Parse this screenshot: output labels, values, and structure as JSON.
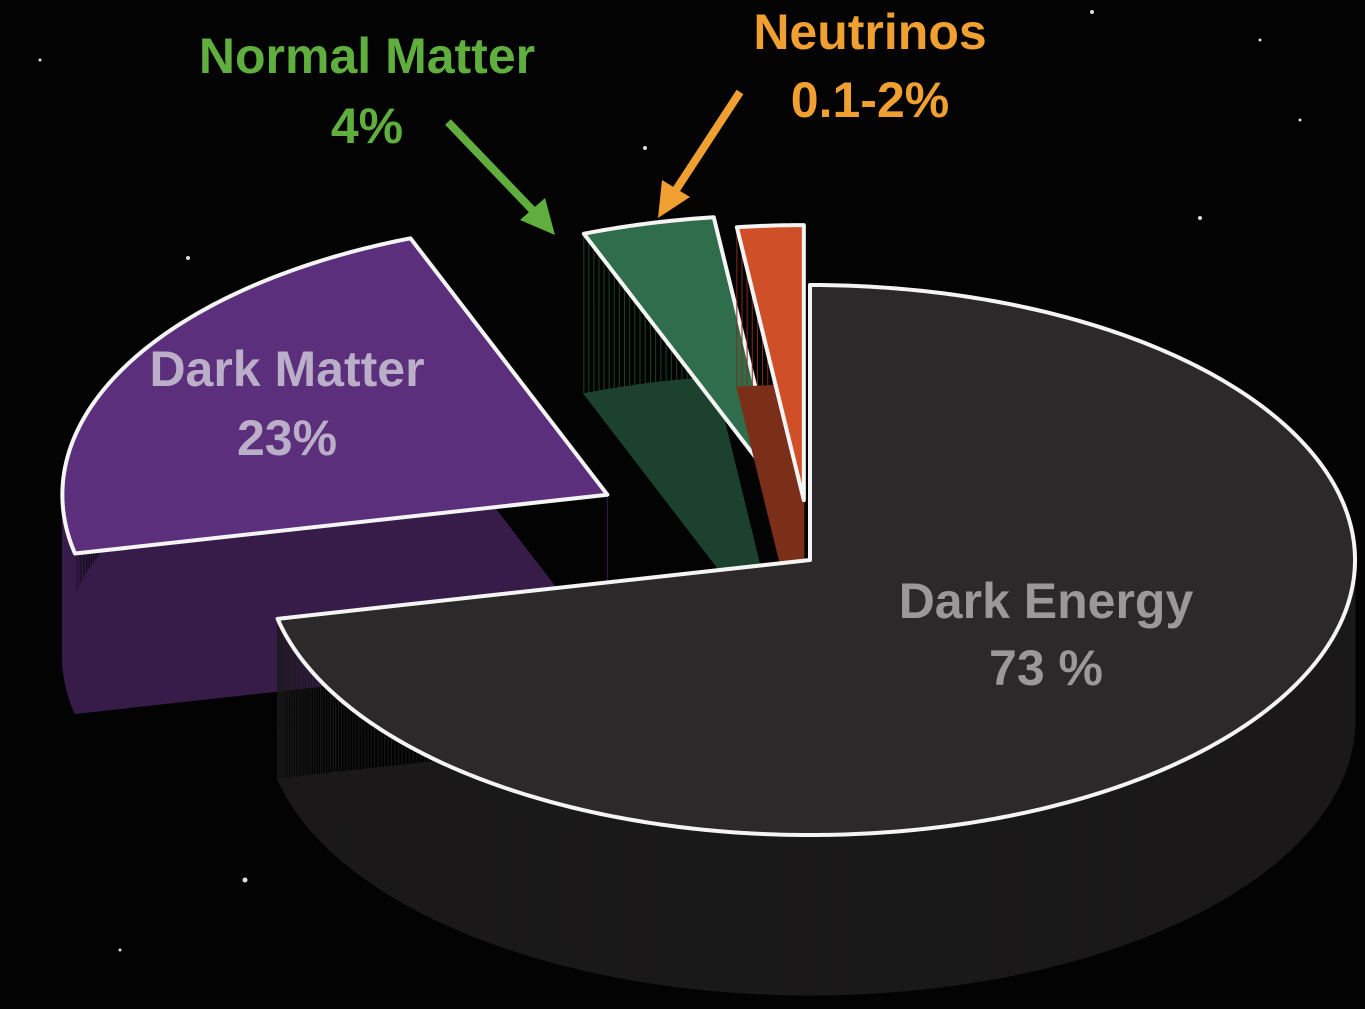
{
  "chart_data": {
    "type": "pie",
    "categories": [
      "Dark Energy",
      "Dark Matter",
      "Normal Matter",
      "Neutrinos"
    ],
    "values": [
      73,
      23,
      4,
      2
    ],
    "value_labels": [
      "73 %",
      "23%",
      "4%",
      "0.1-2%"
    ],
    "colors": [
      "#2b2929",
      "#5b2f7c",
      "#2f6d4c",
      "#cf4f28"
    ]
  }
}
